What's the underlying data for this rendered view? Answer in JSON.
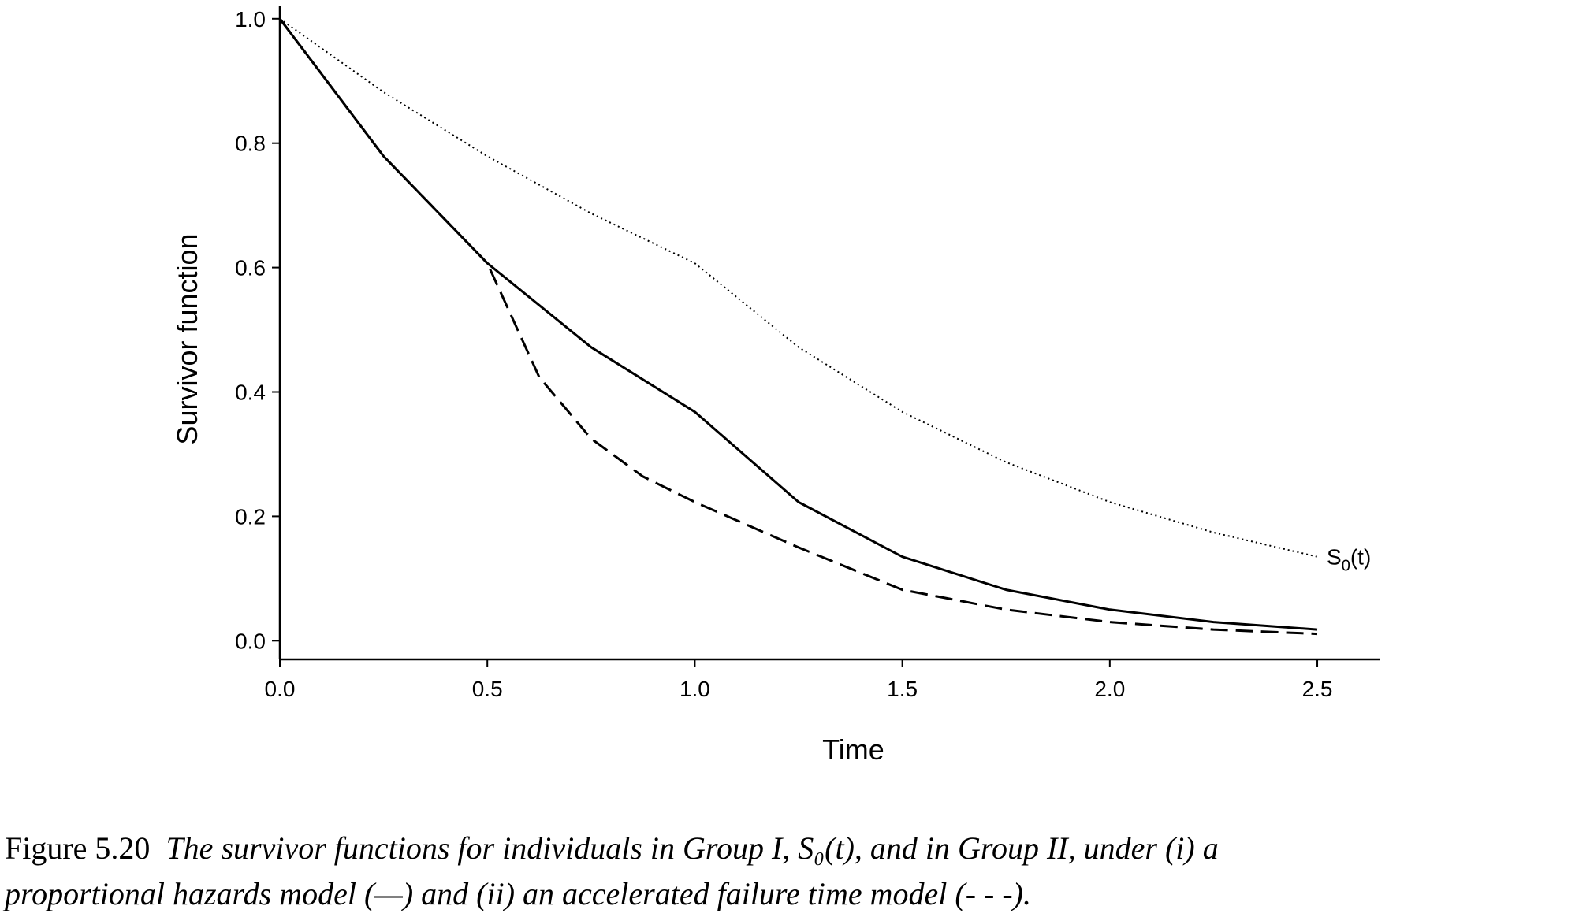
{
  "chart_data": {
    "type": "line",
    "xlabel": "Time",
    "ylabel": "Survivor function",
    "xlim": [
      0,
      2.65
    ],
    "ylim": [
      -0.03,
      1.02
    ],
    "xticks": [
      0,
      0.5,
      1,
      1.5,
      2,
      2.5
    ],
    "xtick_labels": [
      "0.0",
      "0.5",
      "1.0",
      "1.5",
      "2.0",
      "2.5"
    ],
    "yticks": [
      0,
      0.2,
      0.4,
      0.6,
      0.8,
      1
    ],
    "ytick_labels": [
      "0.0",
      "0.2",
      "0.4",
      "0.6",
      "0.8",
      "1.0"
    ],
    "grid": false,
    "legend": "none",
    "series": [
      {
        "label": "S0(t)",
        "label_main": "S",
        "label_sub": "0",
        "label_tail": "(t)",
        "style": "dotted",
        "color": "#000000",
        "x": [
          0,
          0.25,
          0.5,
          0.75,
          1.0,
          1.25,
          1.5,
          1.75,
          2.0,
          2.25,
          2.5
        ],
        "y": [
          1.0,
          0.882,
          0.779,
          0.687,
          0.607,
          0.472,
          0.368,
          0.287,
          0.223,
          0.174,
          0.135
        ]
      },
      {
        "style": "solid",
        "color": "#000000",
        "x": [
          0,
          0.25,
          0.5,
          0.75,
          1.0,
          1.25,
          1.5,
          1.75,
          2.0,
          2.25,
          2.5
        ],
        "y": [
          1.0,
          0.779,
          0.607,
          0.472,
          0.368,
          0.223,
          0.135,
          0.082,
          0.05,
          0.03,
          0.018
        ]
      },
      {
        "style": "dashed",
        "color": "#000000",
        "x": [
          0,
          0.25,
          0.5,
          0.625,
          0.75,
          0.875,
          1.0,
          1.25,
          1.5,
          1.75,
          2.0,
          2.25,
          2.5
        ],
        "y": [
          1.0,
          0.779,
          0.607,
          0.424,
          0.325,
          0.264,
          0.223,
          0.15,
          0.082,
          0.05,
          0.03,
          0.018,
          0.011
        ]
      }
    ]
  },
  "caption": {
    "figure_number": "Figure 5.20",
    "line1": "The survivor functions for individuals in Group I, S₀(t), and in Group II, under (i) a",
    "line2": "proportional hazards model (—) and (ii) an accelerated failure time model (- - -)."
  }
}
